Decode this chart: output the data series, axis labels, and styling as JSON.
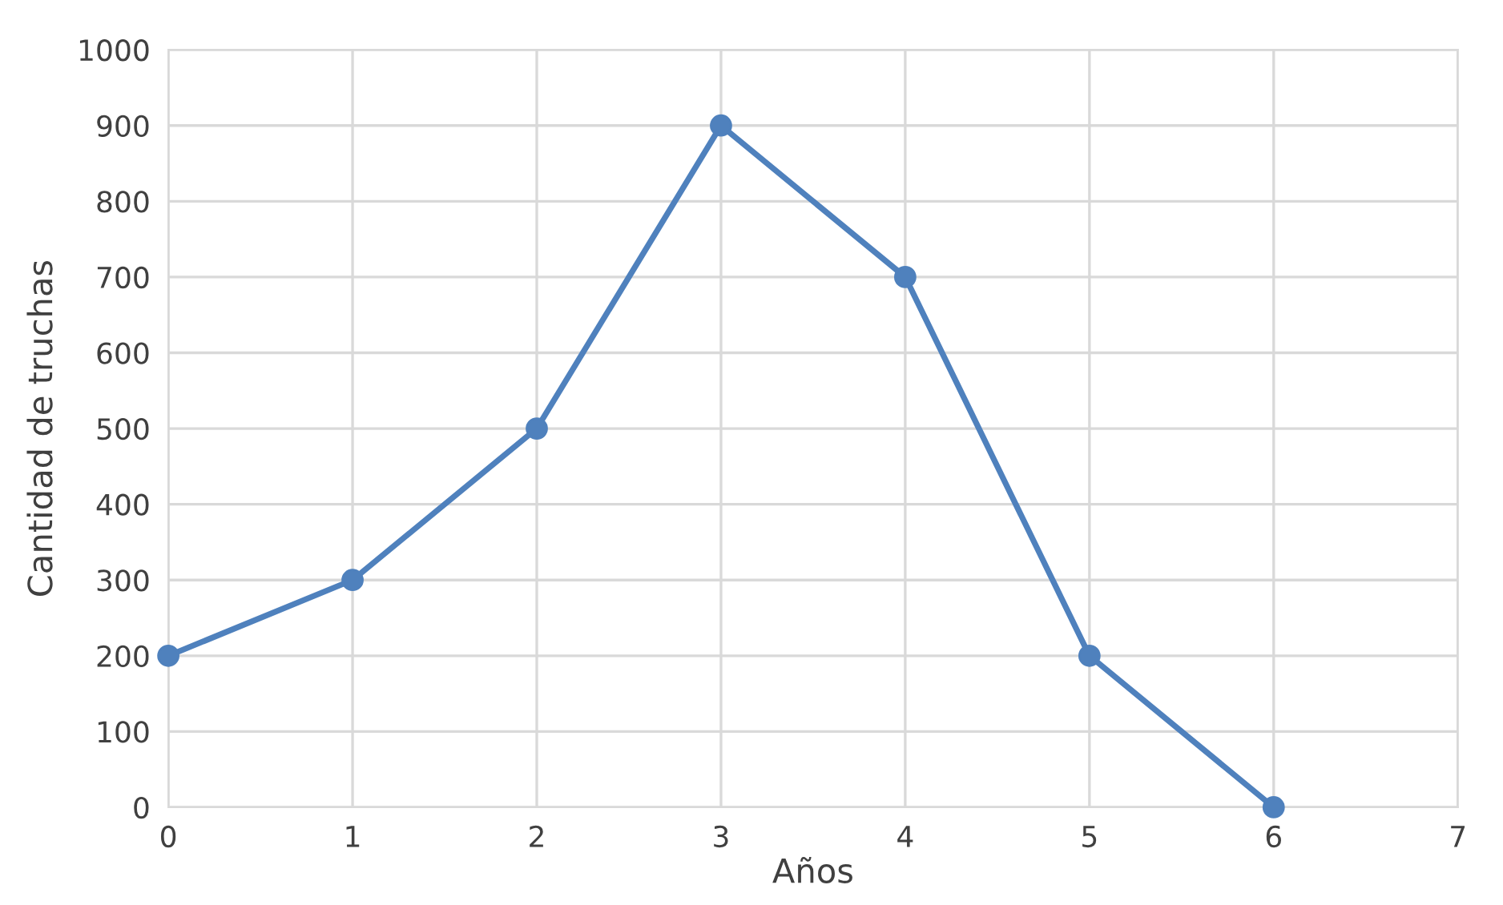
{
  "chart_data": {
    "type": "line",
    "xlabel": "Años",
    "ylabel": "Cantidad de truchas",
    "x": [
      0,
      1,
      2,
      3,
      4,
      5,
      6
    ],
    "series": [
      {
        "color": "#4f81bd",
        "values": [
          200,
          300,
          500,
          900,
          700,
          200,
          0
        ]
      }
    ],
    "xlim": [
      0,
      7
    ],
    "xticks": [
      0,
      1,
      2,
      3,
      4,
      5,
      6,
      7
    ],
    "ylim": [
      0,
      1000
    ],
    "yticks": [
      0,
      100,
      200,
      300,
      400,
      500,
      600,
      700,
      800,
      900,
      1000
    ],
    "grid": true,
    "marker": "circle",
    "line_style": "solid",
    "legend": false
  }
}
